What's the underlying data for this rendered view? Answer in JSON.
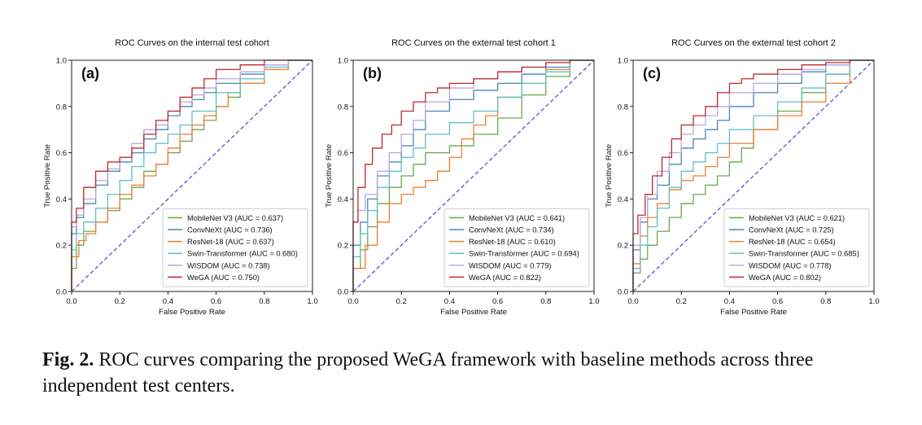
{
  "caption": {
    "label": "Fig. 2.",
    "text": "ROC curves comparing the proposed WeGA framework with baseline methods across three independent test centers."
  },
  "colors": {
    "MobileNet V3": "#6aa84f",
    "ConvNeXt": "#4a86b8",
    "ResNet-18": "#f07f2f",
    "Swin-Transformer": "#5fc0c4",
    "WISDOM": "#b7a9de",
    "WeGA": "#c0292b",
    "chance": "#5558c8"
  },
  "chart_data": [
    {
      "type": "line",
      "panel_label": "(a)",
      "title": "ROC Curves on the internal test cohort",
      "xlabel": "False Positive Rate",
      "ylabel": "True Positive Rate",
      "xlim": [
        0,
        1
      ],
      "ylim": [
        0,
        1
      ],
      "xticks": [
        "0.0",
        "0.2",
        "0.4",
        "0.6",
        "0.8",
        "1.0"
      ],
      "yticks": [
        "0.0",
        "0.2",
        "0.4",
        "0.6",
        "0.8",
        "1.0"
      ],
      "legend_position": "lower right",
      "series": [
        {
          "name": "MobileNet V3",
          "legend": "MobileNet V3 (AUC = 0.637)",
          "x": [
            0,
            0.02,
            0.05,
            0.1,
            0.15,
            0.2,
            0.25,
            0.3,
            0.35,
            0.4,
            0.45,
            0.5,
            0.55,
            0.6,
            0.65,
            0.7,
            0.8,
            0.9,
            1.0
          ],
          "y": [
            0,
            0.1,
            0.2,
            0.26,
            0.3,
            0.35,
            0.4,
            0.45,
            0.52,
            0.55,
            0.6,
            0.65,
            0.7,
            0.74,
            0.8,
            0.84,
            0.9,
            0.96,
            1.0
          ]
        },
        {
          "name": "ConvNeXt",
          "legend": "ConvNeXt (AUC = 0.736)",
          "x": [
            0,
            0.02,
            0.05,
            0.1,
            0.15,
            0.2,
            0.25,
            0.3,
            0.35,
            0.4,
            0.45,
            0.5,
            0.55,
            0.6,
            0.7,
            0.8,
            0.9,
            1.0
          ],
          "y": [
            0,
            0.25,
            0.32,
            0.38,
            0.46,
            0.52,
            0.56,
            0.6,
            0.66,
            0.7,
            0.76,
            0.8,
            0.83,
            0.86,
            0.9,
            0.94,
            0.98,
            1.0
          ]
        },
        {
          "name": "ResNet-18",
          "legend": "ResNet-18 (AUC = 0.637)",
          "x": [
            0,
            0.03,
            0.06,
            0.1,
            0.15,
            0.2,
            0.25,
            0.3,
            0.35,
            0.4,
            0.45,
            0.5,
            0.55,
            0.6,
            0.65,
            0.7,
            0.8,
            0.9,
            1.0
          ],
          "y": [
            0,
            0.15,
            0.22,
            0.25,
            0.3,
            0.36,
            0.42,
            0.46,
            0.5,
            0.55,
            0.62,
            0.68,
            0.72,
            0.76,
            0.8,
            0.86,
            0.9,
            0.96,
            1.0
          ]
        },
        {
          "name": "Swin-Transformer",
          "legend": "Swin-Transformer (AUC = 0.680)",
          "x": [
            0,
            0.02,
            0.05,
            0.1,
            0.15,
            0.2,
            0.25,
            0.3,
            0.35,
            0.4,
            0.45,
            0.5,
            0.6,
            0.7,
            0.8,
            0.9,
            1.0
          ],
          "y": [
            0,
            0.18,
            0.25,
            0.3,
            0.36,
            0.42,
            0.48,
            0.54,
            0.6,
            0.64,
            0.68,
            0.72,
            0.78,
            0.86,
            0.92,
            0.97,
            1.0
          ]
        },
        {
          "name": "WISDOM",
          "legend": "WISDOM (AUC = 0.738)",
          "x": [
            0,
            0.02,
            0.05,
            0.1,
            0.15,
            0.2,
            0.25,
            0.3,
            0.35,
            0.4,
            0.45,
            0.5,
            0.55,
            0.6,
            0.7,
            0.8,
            0.9,
            1.0
          ],
          "y": [
            0,
            0.28,
            0.33,
            0.4,
            0.48,
            0.53,
            0.58,
            0.64,
            0.7,
            0.72,
            0.78,
            0.82,
            0.85,
            0.88,
            0.92,
            0.95,
            0.98,
            1.0
          ]
        },
        {
          "name": "WeGA",
          "legend": "WeGA (AUC = 0.750)",
          "x": [
            0,
            0.02,
            0.05,
            0.1,
            0.15,
            0.2,
            0.25,
            0.3,
            0.35,
            0.4,
            0.45,
            0.5,
            0.55,
            0.6,
            0.7,
            0.8,
            0.9,
            1.0
          ],
          "y": [
            0,
            0.3,
            0.36,
            0.45,
            0.52,
            0.56,
            0.58,
            0.62,
            0.68,
            0.74,
            0.78,
            0.84,
            0.88,
            0.92,
            0.96,
            0.98,
            1.0,
            1.0
          ]
        }
      ]
    },
    {
      "type": "line",
      "panel_label": "(b)",
      "title": "ROC Curves on the external test cohort 1",
      "xlabel": "False Positive Rate",
      "ylabel": "True Positive Rate",
      "xlim": [
        0,
        1
      ],
      "ylim": [
        0,
        1
      ],
      "xticks": [
        "0.0",
        "0.2",
        "0.4",
        "0.6",
        "0.8",
        "1.0"
      ],
      "yticks": [
        "0.0",
        "0.2",
        "0.4",
        "0.6",
        "0.8",
        "1.0"
      ],
      "legend_position": "lower right",
      "series": [
        {
          "name": "MobileNet V3",
          "legend": "MobileNet V3 (AUC = 0.641)",
          "x": [
            0,
            0.03,
            0.06,
            0.1,
            0.15,
            0.2,
            0.25,
            0.3,
            0.4,
            0.5,
            0.6,
            0.7,
            0.8,
            0.9,
            1.0
          ],
          "y": [
            0,
            0.1,
            0.18,
            0.28,
            0.38,
            0.45,
            0.5,
            0.55,
            0.6,
            0.63,
            0.68,
            0.75,
            0.85,
            0.93,
            1.0
          ]
        },
        {
          "name": "ConvNeXt",
          "legend": "ConvNeXt (AUC = 0.734)",
          "x": [
            0,
            0.03,
            0.06,
            0.1,
            0.15,
            0.2,
            0.25,
            0.3,
            0.4,
            0.5,
            0.6,
            0.7,
            0.8,
            0.9,
            1.0
          ],
          "y": [
            0,
            0.2,
            0.3,
            0.4,
            0.5,
            0.56,
            0.63,
            0.7,
            0.78,
            0.83,
            0.87,
            0.9,
            0.94,
            0.97,
            1.0
          ]
        },
        {
          "name": "ResNet-18",
          "legend": "ResNet-18 (AUC = 0.610)",
          "x": [
            0,
            0.05,
            0.1,
            0.15,
            0.2,
            0.25,
            0.3,
            0.35,
            0.4,
            0.45,
            0.5,
            0.55,
            0.6,
            0.7,
            0.8,
            0.9,
            1.0
          ],
          "y": [
            0,
            0.1,
            0.2,
            0.3,
            0.38,
            0.42,
            0.45,
            0.48,
            0.52,
            0.58,
            0.66,
            0.72,
            0.76,
            0.84,
            0.9,
            0.96,
            1.0
          ]
        },
        {
          "name": "Swin-Transformer",
          "legend": "Swin-Transformer (AUC = 0.694)",
          "x": [
            0,
            0.03,
            0.06,
            0.1,
            0.15,
            0.2,
            0.25,
            0.3,
            0.4,
            0.5,
            0.6,
            0.7,
            0.8,
            0.9,
            1.0
          ],
          "y": [
            0,
            0.15,
            0.25,
            0.35,
            0.45,
            0.52,
            0.58,
            0.62,
            0.68,
            0.73,
            0.78,
            0.84,
            0.9,
            0.95,
            1.0
          ]
        },
        {
          "name": "WISDOM",
          "legend": "WISDOM (AUC = 0.779)",
          "x": [
            0,
            0.02,
            0.05,
            0.1,
            0.15,
            0.2,
            0.25,
            0.3,
            0.4,
            0.5,
            0.6,
            0.7,
            0.8,
            0.9,
            1.0
          ],
          "y": [
            0,
            0.3,
            0.35,
            0.42,
            0.52,
            0.6,
            0.68,
            0.74,
            0.82,
            0.88,
            0.92,
            0.95,
            0.97,
            0.99,
            1.0
          ]
        },
        {
          "name": "WeGA",
          "legend": "WeGA (AUC = 0.822)",
          "x": [
            0,
            0.02,
            0.05,
            0.08,
            0.12,
            0.16,
            0.2,
            0.25,
            0.3,
            0.35,
            0.4,
            0.5,
            0.6,
            0.7,
            0.8,
            0.9,
            1.0
          ],
          "y": [
            0,
            0.3,
            0.45,
            0.55,
            0.62,
            0.68,
            0.72,
            0.78,
            0.82,
            0.86,
            0.88,
            0.9,
            0.92,
            0.95,
            0.97,
            0.99,
            1.0
          ]
        }
      ]
    },
    {
      "type": "line",
      "panel_label": "(c)",
      "title": "ROC Curves on the external test cohort 2",
      "xlabel": "False Positive Rate",
      "ylabel": "True Positive Rate",
      "xlim": [
        0,
        1
      ],
      "ylim": [
        0,
        1
      ],
      "xticks": [
        "0.0",
        "0.2",
        "0.4",
        "0.6",
        "0.8",
        "1.0"
      ],
      "yticks": [
        "0.0",
        "0.2",
        "0.4",
        "0.6",
        "0.8",
        "1.0"
      ],
      "legend_position": "lower right",
      "series": [
        {
          "name": "MobileNet V3",
          "legend": "MobileNet V3 (AUC = 0.621)",
          "x": [
            0,
            0.03,
            0.06,
            0.1,
            0.15,
            0.2,
            0.25,
            0.3,
            0.35,
            0.4,
            0.45,
            0.5,
            0.6,
            0.7,
            0.8,
            0.9,
            1.0
          ],
          "y": [
            0,
            0.08,
            0.14,
            0.2,
            0.26,
            0.32,
            0.38,
            0.42,
            0.46,
            0.5,
            0.56,
            0.62,
            0.7,
            0.78,
            0.86,
            0.94,
            1.0
          ]
        },
        {
          "name": "ConvNeXt",
          "legend": "ConvNeXt (AUC = 0.725)",
          "x": [
            0,
            0.03,
            0.06,
            0.1,
            0.15,
            0.2,
            0.25,
            0.3,
            0.35,
            0.4,
            0.5,
            0.6,
            0.7,
            0.8,
            0.9,
            1.0
          ],
          "y": [
            0,
            0.18,
            0.3,
            0.4,
            0.46,
            0.55,
            0.62,
            0.66,
            0.7,
            0.74,
            0.8,
            0.86,
            0.9,
            0.95,
            0.98,
            1.0
          ]
        },
        {
          "name": "ResNet-18",
          "legend": "ResNet-18 (AUC = 0.654)",
          "x": [
            0,
            0.03,
            0.06,
            0.1,
            0.15,
            0.2,
            0.25,
            0.3,
            0.35,
            0.4,
            0.5,
            0.6,
            0.7,
            0.8,
            0.9,
            1.0
          ],
          "y": [
            0,
            0.12,
            0.24,
            0.32,
            0.38,
            0.44,
            0.48,
            0.5,
            0.54,
            0.58,
            0.64,
            0.7,
            0.76,
            0.82,
            0.9,
            1.0
          ]
        },
        {
          "name": "Swin-Transformer",
          "legend": "Swin-Transformer (AUC = 0.685)",
          "x": [
            0,
            0.03,
            0.06,
            0.1,
            0.15,
            0.2,
            0.25,
            0.3,
            0.35,
            0.4,
            0.5,
            0.6,
            0.7,
            0.8,
            0.9,
            1.0
          ],
          "y": [
            0,
            0.1,
            0.2,
            0.28,
            0.36,
            0.45,
            0.52,
            0.56,
            0.6,
            0.64,
            0.7,
            0.76,
            0.82,
            0.88,
            0.94,
            1.0
          ]
        },
        {
          "name": "WISDOM",
          "legend": "WISDOM (AUC = 0.778)",
          "x": [
            0,
            0.03,
            0.06,
            0.1,
            0.15,
            0.2,
            0.25,
            0.3,
            0.35,
            0.4,
            0.5,
            0.6,
            0.7,
            0.8,
            0.9,
            1.0
          ],
          "y": [
            0,
            0.2,
            0.32,
            0.42,
            0.52,
            0.6,
            0.68,
            0.72,
            0.76,
            0.8,
            0.86,
            0.9,
            0.94,
            0.96,
            0.98,
            1.0
          ]
        },
        {
          "name": "WeGA",
          "legend": "WeGA (AUC = 0.802)",
          "x": [
            0,
            0.02,
            0.05,
            0.08,
            0.12,
            0.16,
            0.2,
            0.25,
            0.3,
            0.35,
            0.4,
            0.45,
            0.5,
            0.6,
            0.7,
            0.8,
            0.9,
            1.0
          ],
          "y": [
            0,
            0.25,
            0.33,
            0.42,
            0.5,
            0.58,
            0.66,
            0.72,
            0.76,
            0.8,
            0.86,
            0.9,
            0.92,
            0.94,
            0.96,
            0.98,
            0.99,
            1.0
          ]
        }
      ]
    }
  ]
}
